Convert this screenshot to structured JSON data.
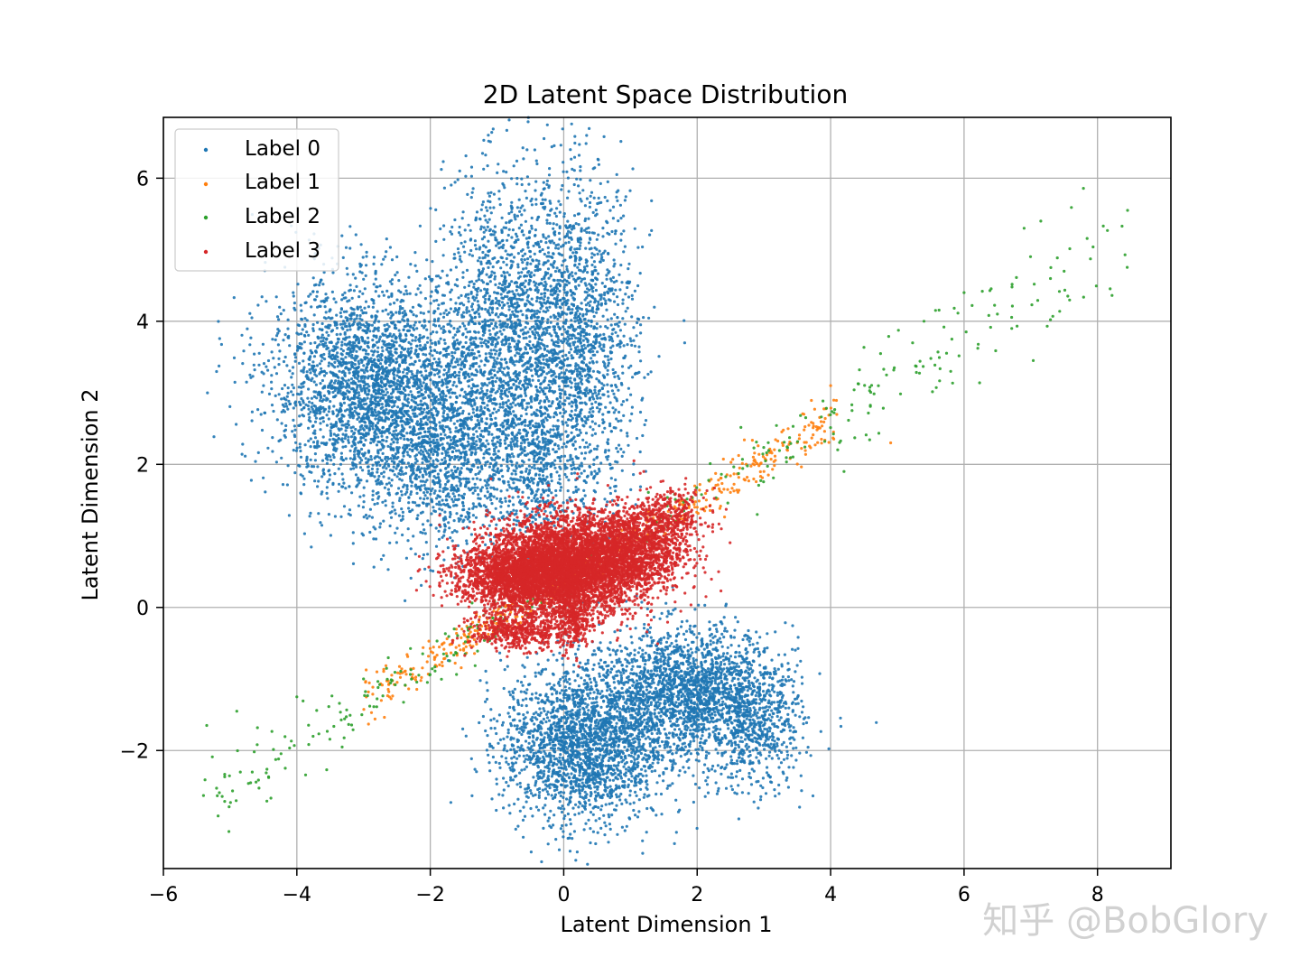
{
  "chart_data": {
    "type": "scatter",
    "title": "2D Latent Space Distribution",
    "xlabel": "Latent Dimension 1",
    "ylabel": "Latent Dimension 2",
    "xlim": [
      -6.0,
      9.1
    ],
    "ylim": [
      -3.65,
      6.85
    ],
    "xticks": [
      -6,
      -4,
      -2,
      0,
      2,
      4,
      6,
      8
    ],
    "yticks": [
      -2,
      0,
      2,
      4,
      6
    ],
    "xtick_labels": [
      "−6",
      "−4",
      "−2",
      "0",
      "2",
      "4",
      "6",
      "8"
    ],
    "ytick_labels": [
      "−2",
      "0",
      "2",
      "4",
      "6"
    ],
    "grid": true,
    "legend_position": "upper-left",
    "series": [
      {
        "name": "Label 0",
        "color": "#1f77b4",
        "clusters": [
          {
            "center": [
              -2.9,
              3.1
            ],
            "spread": [
              0.75,
              0.75
            ],
            "count": 2600
          },
          {
            "center": [
              -1.8,
              2.2
            ],
            "spread": [
              0.55,
              0.7
            ],
            "count": 1200
          },
          {
            "center": [
              -0.9,
              3.8
            ],
            "spread": [
              0.45,
              1.1
            ],
            "count": 1500
          },
          {
            "center": [
              0.2,
              3.6
            ],
            "spread": [
              0.45,
              1.2
            ],
            "count": 1700
          },
          {
            "center": [
              -0.5,
              2.0
            ],
            "spread": [
              0.25,
              0.5
            ],
            "count": 300
          },
          {
            "center": [
              0.3,
              -1.9
            ],
            "spread": [
              0.6,
              0.55
            ],
            "count": 2200
          },
          {
            "center": [
              1.9,
              -1.2
            ],
            "spread": [
              0.65,
              0.45
            ],
            "count": 2000
          },
          {
            "center": [
              2.9,
              -1.7
            ],
            "spread": [
              0.35,
              0.45
            ],
            "count": 500
          }
        ],
        "sample_points": [
          [
            -0.4,
            6.2
          ],
          [
            0.1,
            6.4
          ],
          [
            -2.5,
            4.9
          ],
          [
            -2.2,
            4.7
          ],
          [
            -4.3,
            3.8
          ],
          [
            3.4,
            -1.9
          ],
          [
            1.2,
            -0.4
          ],
          [
            0.7,
            -3.1
          ]
        ]
      },
      {
        "name": "Label 1",
        "color": "#ff7f0e",
        "band": {
          "x_range": [
            -3.0,
            4.1
          ],
          "slope": 0.56,
          "intercept": 0.38,
          "jitter": 0.28,
          "count": 520
        },
        "sample_points": [
          [
            -2.8,
            -0.9
          ],
          [
            -1.5,
            -0.6
          ],
          [
            -0.9,
            -0.35
          ],
          [
            1.2,
            0.9
          ],
          [
            2.0,
            1.4
          ],
          [
            3.0,
            1.9
          ],
          [
            3.6,
            2.7
          ],
          [
            4.0,
            3.1
          ],
          [
            4.9,
            2.3
          ]
        ]
      },
      {
        "name": "Label 2",
        "color": "#2ca02c",
        "band": {
          "x_range": [
            -5.4,
            8.5
          ],
          "slope": 0.56,
          "intercept": 0.38,
          "jitter": 0.38,
          "count": 360
        },
        "sample_points": [
          [
            -5.35,
            -1.65
          ],
          [
            -4.9,
            -1.45
          ],
          [
            -4.0,
            -1.25
          ],
          [
            -3.0,
            -1.0
          ],
          [
            -1.8,
            -0.65
          ],
          [
            1.8,
            1.35
          ],
          [
            2.9,
            1.3
          ],
          [
            4.2,
            1.9
          ],
          [
            5.4,
            4.0
          ],
          [
            5.8,
            3.3
          ],
          [
            6.0,
            4.4
          ],
          [
            6.5,
            4.1
          ],
          [
            6.9,
            5.3
          ],
          [
            7.15,
            5.4
          ],
          [
            7.3,
            4.75
          ],
          [
            7.5,
            4.7
          ],
          [
            8.45,
            5.55
          ]
        ]
      },
      {
        "name": "Label 3",
        "color": "#d62728",
        "clusters": [
          {
            "center": [
              0.0,
              0.55
            ],
            "spread": [
              0.55,
              0.35
            ],
            "count": 4500
          },
          {
            "center": [
              -0.8,
              0.45
            ],
            "spread": [
              0.45,
              0.22
            ],
            "count": 1400
          },
          {
            "center": [
              1.0,
              0.8
            ],
            "spread": [
              0.4,
              0.3
            ],
            "count": 1500
          },
          {
            "center": [
              0.15,
              -0.2
            ],
            "spread": [
              0.12,
              0.2
            ],
            "count": 250
          },
          {
            "center": [
              1.6,
              1.25
            ],
            "spread": [
              0.28,
              0.2
            ],
            "count": 350
          },
          {
            "center": [
              -0.7,
              -0.35
            ],
            "spread": [
              0.35,
              0.12
            ],
            "count": 450
          }
        ],
        "sample_points": [
          [
            -1.8,
            0.5
          ],
          [
            1.6,
            1.6
          ],
          [
            1.2,
            1.9
          ],
          [
            0.1,
            -0.55
          ],
          [
            1.9,
            0.8
          ]
        ]
      }
    ]
  },
  "watermark": {
    "text": "知乎 @BobGlory"
  }
}
